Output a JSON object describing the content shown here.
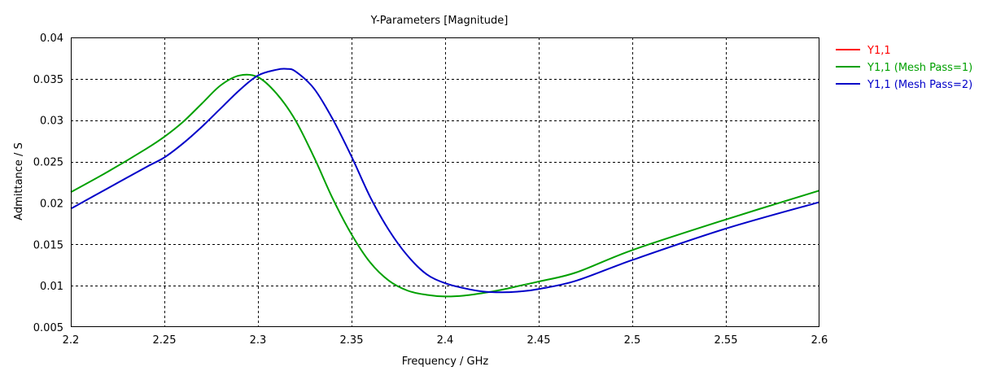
{
  "chart_data": {
    "type": "line",
    "title": "Y-Parameters [Magnitude]",
    "xlabel": "Frequency / GHz",
    "ylabel": "Admittance / S",
    "xlim": [
      2.2,
      2.6
    ],
    "ylim": [
      0.005,
      0.04
    ],
    "x_ticks": [
      "2.2",
      "2.25",
      "2.3",
      "2.35",
      "2.4",
      "2.45",
      "2.5",
      "2.55",
      "2.6"
    ],
    "y_ticks": [
      "0.005",
      "0.01",
      "0.015",
      "0.02",
      "0.025",
      "0.03",
      "0.035",
      "0.04"
    ],
    "grid": true,
    "legend_position": "right",
    "series": [
      {
        "name": "Y1,1",
        "color": "#ff0000",
        "x": [],
        "y": []
      },
      {
        "name": "Y1,1 (Mesh Pass=1)",
        "color": "#00a000",
        "x": [
          2.2,
          2.22,
          2.24,
          2.25,
          2.26,
          2.27,
          2.28,
          2.29,
          2.3,
          2.31,
          2.32,
          2.33,
          2.34,
          2.35,
          2.36,
          2.37,
          2.38,
          2.39,
          2.4,
          2.41,
          2.42,
          2.43,
          2.44,
          2.45,
          2.47,
          2.5,
          2.55,
          2.6
        ],
        "y": [
          0.0213,
          0.0238,
          0.0265,
          0.028,
          0.0298,
          0.032,
          0.0342,
          0.0354,
          0.0352,
          0.0332,
          0.03,
          0.0255,
          0.0205,
          0.0162,
          0.0128,
          0.0106,
          0.0094,
          0.0089,
          0.0087,
          0.0088,
          0.0091,
          0.0095,
          0.01,
          0.0105,
          0.0116,
          0.0143,
          0.018,
          0.0215
        ]
      },
      {
        "name": "Y1,1 (Mesh Pass=2)",
        "color": "#0000c8",
        "x": [
          2.2,
          2.22,
          2.24,
          2.25,
          2.26,
          2.27,
          2.28,
          2.29,
          2.3,
          2.31,
          2.315,
          2.32,
          2.33,
          2.34,
          2.35,
          2.36,
          2.37,
          2.38,
          2.39,
          2.4,
          2.41,
          2.42,
          2.43,
          2.44,
          2.45,
          2.47,
          2.5,
          2.55,
          2.6
        ],
        "y": [
          0.0193,
          0.0218,
          0.0243,
          0.0255,
          0.0272,
          0.0292,
          0.0314,
          0.0336,
          0.0354,
          0.0361,
          0.0362,
          0.0359,
          0.0338,
          0.0301,
          0.0256,
          0.0207,
          0.0167,
          0.0136,
          0.0114,
          0.0103,
          0.0097,
          0.0093,
          0.0092,
          0.0093,
          0.0096,
          0.0106,
          0.0131,
          0.0169,
          0.0201
        ]
      }
    ]
  }
}
